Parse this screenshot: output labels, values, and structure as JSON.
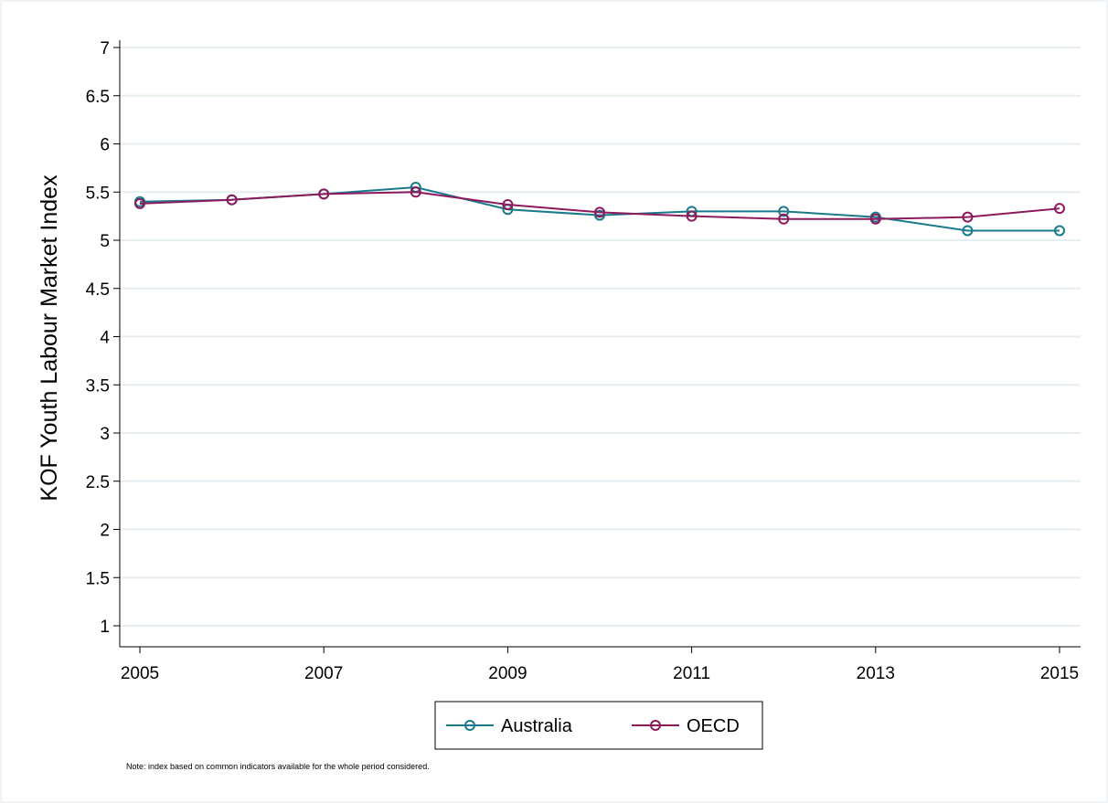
{
  "chart_data": {
    "type": "line",
    "x": [
      2005,
      2006,
      2007,
      2008,
      2009,
      2010,
      2011,
      2012,
      2013,
      2014,
      2015
    ],
    "x_ticks": [
      "2005",
      "2007",
      "2009",
      "2011",
      "2013",
      "2015"
    ],
    "y_ticks": [
      "1",
      "1.5",
      "2",
      "2.5",
      "3",
      "3.5",
      "4",
      "4.5",
      "5",
      "5.5",
      "6",
      "6.5",
      "7"
    ],
    "ylim": [
      1,
      7
    ],
    "xlim": [
      2005,
      2015
    ],
    "ylabel": "KOF Youth Labour Market Index",
    "xlabel": "",
    "grid": true,
    "legend_position": "bottom",
    "series": [
      {
        "name": "Australia",
        "color": "#1a7a8c",
        "values": [
          5.4,
          5.42,
          5.48,
          5.55,
          5.32,
          5.26,
          5.3,
          5.3,
          5.24,
          5.1,
          5.1
        ]
      },
      {
        "name": "OECD",
        "color": "#8c1a5c",
        "values": [
          5.38,
          5.42,
          5.48,
          5.5,
          5.37,
          5.29,
          5.25,
          5.22,
          5.22,
          5.24,
          5.33
        ]
      }
    ],
    "note": "Note: index based on common indicators available for the whole period considered."
  }
}
